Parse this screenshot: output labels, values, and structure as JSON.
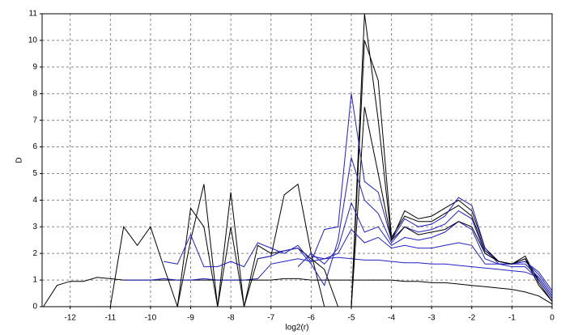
{
  "chart_data": {
    "type": "line",
    "xlabel": "log2(r)",
    "ylabel": "D",
    "x": [
      -12.67,
      -12.33,
      -12,
      -11.67,
      -11.33,
      -11,
      -10.67,
      -10.33,
      -10,
      -9.67,
      -9.33,
      -9,
      -8.67,
      -8.33,
      -8,
      -7.67,
      -7.33,
      -7,
      -6.67,
      -6.33,
      -6,
      -5.67,
      -5.33,
      -5,
      -4.67,
      -4.33,
      -4,
      -3.67,
      -3.33,
      -3,
      -2.67,
      -2.33,
      -2,
      -1.67,
      -1.33,
      -1,
      -0.67,
      -0.33,
      0
    ],
    "series": [
      {
        "color": "#000000",
        "values": [
          0,
          0.8,
          0.95,
          0.95,
          1.1,
          1.05,
          1.0,
          1.0,
          1.0,
          1.0,
          1.0,
          1.0,
          1.0,
          1.0,
          1.0,
          1.0,
          1.0,
          1.0,
          1.05,
          1.05,
          1.0,
          1.0,
          1.0,
          1.0,
          1.0,
          1.0,
          1.0,
          0.95,
          0.95,
          0.9,
          0.9,
          0.85,
          0.8,
          0.75,
          0.7,
          0.65,
          0.55,
          0.4,
          0.1
        ]
      },
      {
        "color": "#2020c0",
        "values": [
          null,
          null,
          null,
          null,
          null,
          null,
          1.0,
          1.0,
          1.0,
          1.05,
          1.0,
          1.0,
          1.05,
          1.0,
          1.0,
          1.0,
          1.05,
          1.6,
          1.7,
          1.8,
          1.7,
          1.8,
          1.85,
          1.8,
          1.75,
          1.75,
          1.7,
          1.65,
          1.65,
          1.6,
          1.6,
          1.55,
          1.5,
          1.45,
          1.4,
          1.35,
          1.3,
          1.1,
          0.4
        ]
      },
      {
        "color": "#000000",
        "values": [
          null,
          null,
          null,
          null,
          null,
          0,
          3.0,
          2.3,
          3.0,
          1.5,
          0,
          3.7,
          3.0,
          0,
          4.3,
          0,
          1.8,
          1.9,
          4.2,
          4.6,
          2.0,
          0,
          0,
          0,
          11.0,
          7.0,
          2.5,
          3.6,
          3.3,
          3.4,
          3.7,
          4.0,
          3.6,
          2.2,
          1.7,
          1.6,
          1.8,
          1.0,
          0.3
        ]
      },
      {
        "color": "#000000",
        "values": [
          null,
          null,
          null,
          null,
          null,
          null,
          null,
          null,
          null,
          null,
          0,
          2.5,
          4.6,
          0,
          3.0,
          0,
          2.3,
          2.0,
          2.1,
          2.2,
          1.8,
          1.4,
          0,
          0,
          10.0,
          8.5,
          2.6,
          3.4,
          3.2,
          3.2,
          3.5,
          3.8,
          3.4,
          2.1,
          1.7,
          1.6,
          1.9,
          0.9,
          0.2
        ]
      },
      {
        "color": "#2020c0",
        "values": [
          null,
          null,
          null,
          null,
          null,
          null,
          null,
          null,
          null,
          1.7,
          1.6,
          2.7,
          1.5,
          1.5,
          1.7,
          1.5,
          2.4,
          2.2,
          2.0,
          2.3,
          1.7,
          2.9,
          3.0,
          8.0,
          4.7,
          4.3,
          2.5,
          3.3,
          3.0,
          3.1,
          3.4,
          4.1,
          3.8,
          2.2,
          1.6,
          1.6,
          1.7,
          1.3,
          0.6
        ]
      },
      {
        "color": "#2020c0",
        "values": [
          null,
          null,
          null,
          null,
          null,
          null,
          null,
          null,
          null,
          null,
          null,
          null,
          null,
          null,
          null,
          null,
          1.8,
          1.9,
          2.1,
          2.2,
          1.6,
          0.8,
          2.5,
          5.6,
          4.0,
          3.5,
          2.4,
          3.0,
          2.8,
          2.9,
          3.1,
          3.6,
          3.3,
          2.0,
          1.7,
          1.6,
          1.7,
          1.2,
          0.5
        ]
      },
      {
        "color": "#2020c0",
        "values": [
          null,
          null,
          null,
          null,
          null,
          null,
          null,
          null,
          null,
          null,
          null,
          null,
          null,
          null,
          null,
          null,
          null,
          null,
          null,
          1.5,
          2.0,
          1.6,
          2.2,
          3.9,
          2.8,
          3.0,
          2.3,
          2.6,
          2.5,
          2.6,
          2.8,
          3.2,
          2.9,
          1.8,
          1.6,
          1.6,
          1.6,
          1.1,
          0.4
        ]
      },
      {
        "color": "#000000",
        "values": [
          null,
          null,
          null,
          null,
          null,
          null,
          null,
          null,
          null,
          null,
          null,
          null,
          null,
          null,
          null,
          null,
          null,
          null,
          null,
          null,
          0,
          0,
          0,
          0,
          7.5,
          5.0,
          2.5,
          3.0,
          2.7,
          2.8,
          2.9,
          3.2,
          3.0,
          2.0,
          1.7,
          1.6,
          1.8,
          0.8,
          0.2
        ]
      },
      {
        "color": "#2020c0",
        "values": [
          null,
          null,
          null,
          null,
          null,
          null,
          null,
          null,
          null,
          null,
          null,
          null,
          null,
          null,
          null,
          null,
          null,
          null,
          null,
          null,
          1.9,
          1.8,
          2.0,
          2.9,
          2.4,
          2.6,
          2.2,
          2.3,
          2.2,
          2.2,
          2.3,
          2.4,
          2.3,
          1.6,
          1.6,
          1.5,
          1.5,
          1.0,
          0.3
        ]
      }
    ],
    "xlim": [
      -12.7,
      0
    ],
    "ylim": [
      0,
      11
    ],
    "xticks": [
      -12,
      -11,
      -10,
      -9,
      -8,
      -7,
      -6,
      -5,
      -4,
      -3,
      -2,
      -1,
      0
    ],
    "yticks": [
      0,
      1,
      2,
      3,
      4,
      5,
      6,
      7,
      8,
      9,
      10,
      11
    ],
    "grid": true
  }
}
